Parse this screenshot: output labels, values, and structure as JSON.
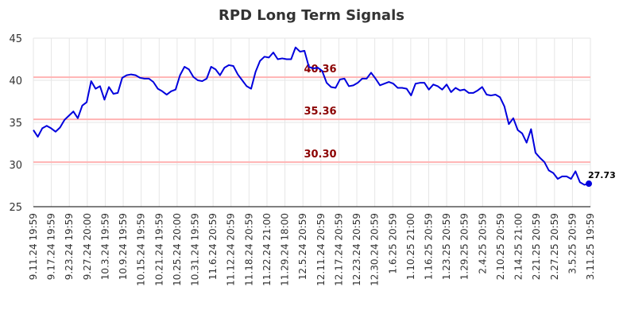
{
  "chart_data": {
    "type": "line",
    "title": "RPD Long Term Signals",
    "xlabel": "",
    "ylabel": "",
    "ylim": [
      25,
      45
    ],
    "yticks": [
      25,
      30,
      35,
      40,
      45
    ],
    "grid": true,
    "x_tick_labels": [
      "9.11.24 19:59",
      "9.17.24 19:59",
      "9.23.24 19:59",
      "9.27.24 20:00",
      "10.3.24 19:59",
      "10.9.24 19:59",
      "10.15.24 19:59",
      "10.21.24 19:59",
      "10.25.24 20:00",
      "10.31.24 19:59",
      "11.6.24 20:59",
      "11.12.24 20:59",
      "11.18.24 20:59",
      "11.22.24 21:00",
      "11.29.24 18:00",
      "12.5.24 20:59",
      "12.11.24 20:59",
      "12.17.24 20:59",
      "12.23.24 20:59",
      "12.30.24 20:59",
      "1.6.25 20:59",
      "1.10.25 21:00",
      "1.16.25 20:59",
      "1.23.25 20:59",
      "1.29.25 20:59",
      "2.4.25 20:59",
      "2.10.25 20:59",
      "2.14.25 21:00",
      "2.21.25 20:59",
      "2.27.25 20:59",
      "3.5.25 20:59",
      "3.11.25 19:59"
    ],
    "reference_lines": [
      {
        "value": 40.36,
        "label": "40.36",
        "color": "#ffb3b3"
      },
      {
        "value": 35.36,
        "label": "35.36",
        "color": "#ffb3b3"
      },
      {
        "value": 30.3,
        "label": "30.30",
        "color": "#ffb3b3"
      }
    ],
    "series": [
      {
        "color": "#0000dd",
        "values": [
          34.1,
          33.3,
          34.3,
          34.6,
          34.3,
          33.9,
          34.4,
          35.3,
          35.8,
          36.3,
          35.5,
          37.0,
          37.4,
          39.9,
          39.0,
          39.3,
          37.7,
          39.2,
          38.4,
          38.5,
          40.3,
          40.6,
          40.7,
          40.6,
          40.3,
          40.2,
          40.2,
          39.8,
          39.0,
          38.7,
          38.3,
          38.7,
          38.9,
          40.6,
          41.6,
          41.3,
          40.4,
          40.0,
          39.9,
          40.2,
          41.6,
          41.3,
          40.6,
          41.5,
          41.8,
          41.7,
          40.7,
          40.0,
          39.3,
          39.0,
          41.0,
          42.3,
          42.8,
          42.7,
          43.3,
          42.5,
          42.6,
          42.5,
          42.5,
          43.9,
          43.4,
          43.5,
          41.6,
          41.4,
          41.5,
          41.1,
          39.7,
          39.2,
          39.1,
          40.1,
          40.2,
          39.3,
          39.4,
          39.7,
          40.2,
          40.2,
          40.9,
          40.2,
          39.4,
          39.6,
          39.8,
          39.6,
          39.1,
          39.1,
          39.0,
          38.2,
          39.6,
          39.7,
          39.7,
          38.9,
          39.5,
          39.3,
          38.9,
          39.5,
          38.6,
          39.1,
          38.8,
          38.9,
          38.5,
          38.5,
          38.8,
          39.2,
          38.3,
          38.2,
          38.3,
          38.0,
          36.9,
          34.8,
          35.5,
          34.1,
          33.7,
          32.6,
          34.2,
          31.4,
          30.8,
          30.3,
          29.3,
          29.0,
          28.3,
          28.6,
          28.6,
          28.3,
          29.2,
          27.9,
          27.6,
          27.73
        ],
        "last_value_label": "27.73"
      }
    ]
  }
}
